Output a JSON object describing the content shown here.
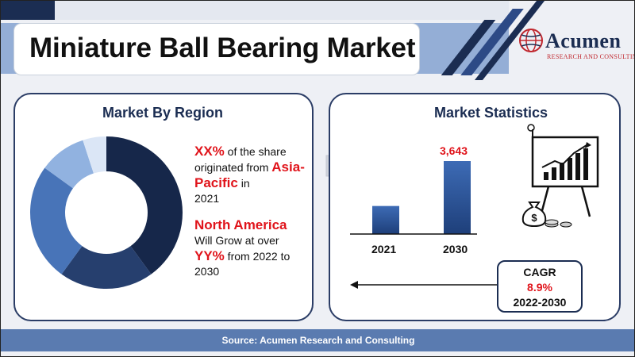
{
  "header": {
    "title": "Miniature Ball Bearing Market"
  },
  "logo": {
    "name": "Acumen",
    "tagline": "RESEARCH AND CONSULTING",
    "icon": "globe-logo-icon"
  },
  "region_panel": {
    "title": "Market By Region",
    "share_value": "XX%",
    "share_text": " of the share originated from ",
    "share_region": "Asia-Pacific",
    "share_in": " in",
    "share_year": "2021",
    "growth_region": "North America",
    "growth_text": "Will Grow at over",
    "growth_value": "YY%",
    "growth_period": " from 2022 to 2030"
  },
  "chart_data": [
    {
      "type": "pie",
      "title": "Market By Region",
      "values": [
        40,
        20,
        25,
        10,
        5
      ],
      "colors": [
        "#16274a",
        "#263f6e",
        "#4874b8",
        "#91b2e0",
        "#dbe6f6"
      ]
    },
    {
      "type": "bar",
      "title": "Market Statistics",
      "categories": [
        "2021",
        "2030"
      ],
      "values": [
        1400,
        3643
      ],
      "data_labels": [
        "",
        "3,643"
      ]
    }
  ],
  "stats_panel": {
    "title": "Market Statistics",
    "value_2030": "3,643",
    "year_1": "2021",
    "year_2": "2030"
  },
  "cagr": {
    "label": "CAGR",
    "value": "8.9%",
    "period": "2022-2030"
  },
  "footer": {
    "source": "Source: Acumen Research and Consulting"
  },
  "colors": {
    "navy": "#1b2d52",
    "accent_red": "#e0141b",
    "footer_blue": "#5a7bb0",
    "band_blue": "#94aed6"
  },
  "icons": [
    "globe-logo-icon",
    "money-bag-icon",
    "growth-board-icon",
    "arrow-left-icon"
  ]
}
